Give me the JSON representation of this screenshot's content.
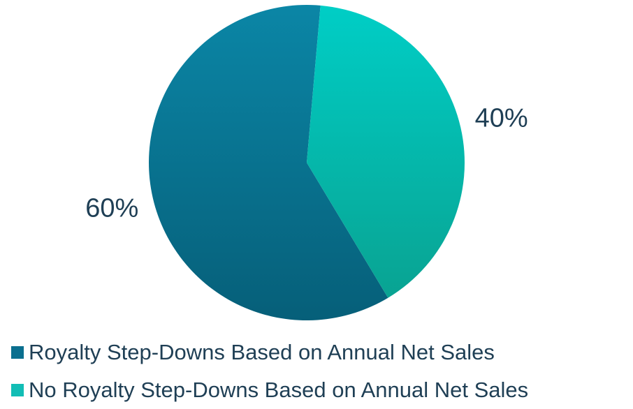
{
  "chart_data": {
    "type": "pie",
    "categories": [
      "Royalty Step-Downs Based on Annual Net Sales",
      "No Royalty Step-Downs Based on Annual Net Sales"
    ],
    "values": [
      60,
      40
    ],
    "data_labels": [
      "60%",
      "40%"
    ],
    "colors": [
      "#0a6f8f",
      "#12bdb5"
    ],
    "title": "",
    "legend_position": "bottom",
    "start_angle_degrees_clockwise_from_top": 5
  }
}
